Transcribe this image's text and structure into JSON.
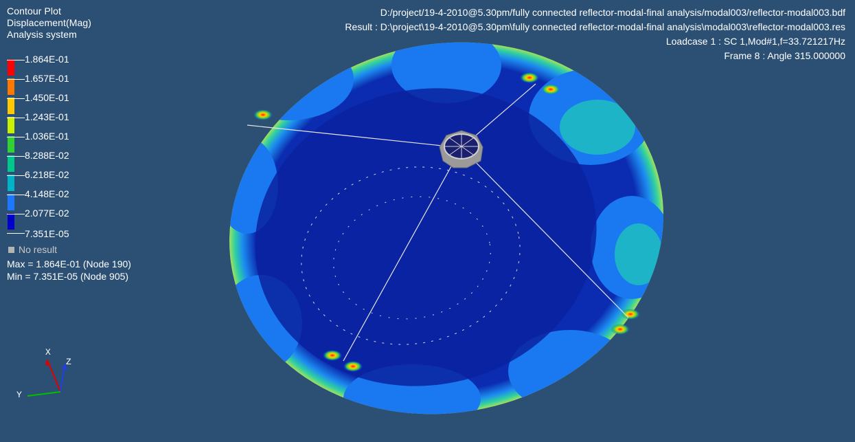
{
  "window": {
    "plot_type": "Contour Plot",
    "result_type": "Displacement(Mag)",
    "system": "Analysis system"
  },
  "legend": {
    "levels": [
      "1.864E-01",
      "1.657E-01",
      "1.450E-01",
      "1.243E-01",
      "1.036E-01",
      "8.288E-02",
      "6.218E-02",
      "4.148E-02",
      "2.077E-02",
      "7.351E-05"
    ],
    "colors": [
      "#ff0000",
      "#ff7800",
      "#ffc800",
      "#c8f000",
      "#32d232",
      "#00c88c",
      "#00b4c8",
      "#1e78ff",
      "#0000c8"
    ],
    "no_result_label": "No result",
    "max_text": "Max = 1.864E-01 (Node 190)",
    "min_text": "Min = 7.351E-05 (Node 905)"
  },
  "header": {
    "model_path": "D:/project/19-4-2010@5.30pm/fully connected reflector-modal-final analysis/modal003/reflector-modal003.bdf",
    "result_path": "Result : D:\\project\\19-4-2010@5.30pm\\fully connected reflector-modal-final analysis\\modal003\\reflector-modal003.res",
    "loadcase": "Loadcase 1 : SC 1,Mod#1,f=33.721217Hz",
    "frame": "Frame 8 : Angle 315.000000"
  },
  "triad": {
    "x_label": "X",
    "y_label": "Y",
    "z_label": "Z"
  },
  "colors": {
    "background": "#2c5074",
    "dish_base": "#0a2aa8",
    "hub": "#a0a0a0",
    "strut": "#e6e6e6"
  }
}
